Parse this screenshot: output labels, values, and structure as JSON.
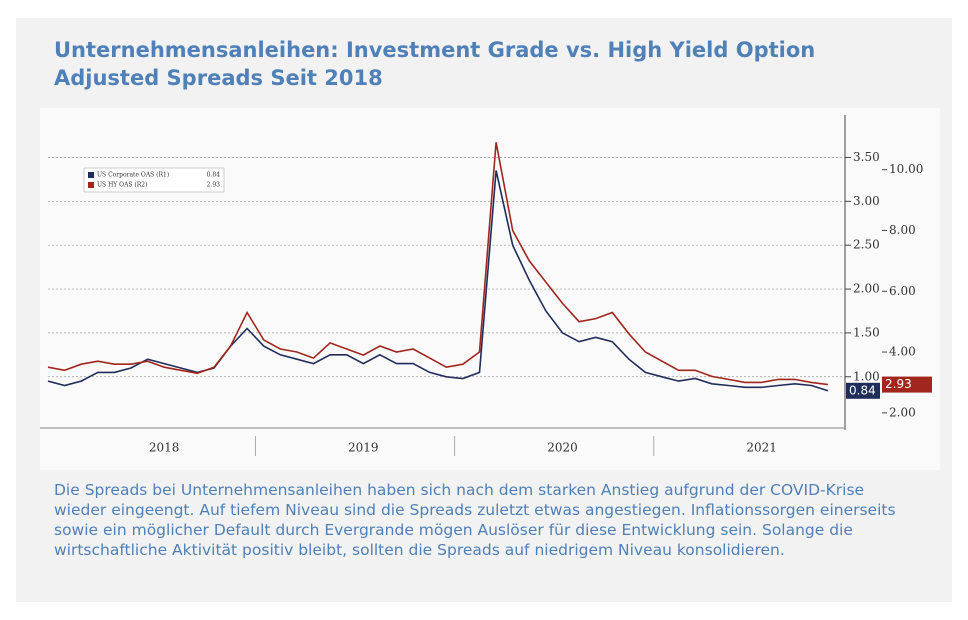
{
  "header": {
    "title": "Unternehmensanleihen: Investment Grade vs. High Yield Option Adjusted Spreads Seit 2018"
  },
  "chart_data": {
    "type": "line",
    "categories": [
      null,
      null,
      null,
      null,
      null,
      null,
      null,
      "2018",
      null,
      null,
      null,
      null,
      null,
      null,
      null,
      null,
      null,
      null,
      null,
      "2019",
      null,
      null,
      null,
      null,
      null,
      null,
      null,
      null,
      null,
      null,
      null,
      "2020",
      null,
      null,
      null,
      null,
      null,
      null,
      null,
      null,
      null,
      null,
      null,
      "2021",
      null,
      null,
      null,
      null
    ],
    "series": [
      {
        "name": "US Corporate OAS (R1)",
        "color": "#1f2d5a",
        "axis": "y",
        "values": [
          0.95,
          0.9,
          0.95,
          1.05,
          1.05,
          1.1,
          1.2,
          1.15,
          1.1,
          1.05,
          1.1,
          1.35,
          1.55,
          1.35,
          1.25,
          1.2,
          1.15,
          1.25,
          1.25,
          1.15,
          1.25,
          1.15,
          1.15,
          1.05,
          1.0,
          0.98,
          1.05,
          3.35,
          2.5,
          2.1,
          1.75,
          1.5,
          1.4,
          1.45,
          1.4,
          1.2,
          1.05,
          1.0,
          0.95,
          0.98,
          0.92,
          0.9,
          0.88,
          0.88,
          0.9,
          0.92,
          0.9,
          0.84
        ]
      },
      {
        "name": "US HY OAS (R2)",
        "color": "#a1261e",
        "axis": "y2",
        "values": [
          3.5,
          3.4,
          3.6,
          3.7,
          3.6,
          3.6,
          3.7,
          3.5,
          3.4,
          3.3,
          3.5,
          4.2,
          5.3,
          4.4,
          4.1,
          4.0,
          3.8,
          4.3,
          4.1,
          3.9,
          4.2,
          4.0,
          4.1,
          3.8,
          3.5,
          3.6,
          4.0,
          10.9,
          8.0,
          7.0,
          6.3,
          5.6,
          5.0,
          5.1,
          5.3,
          4.6,
          4.0,
          3.7,
          3.4,
          3.4,
          3.2,
          3.1,
          3.0,
          3.0,
          3.1,
          3.1,
          3.0,
          2.93
        ]
      }
    ],
    "ylim": [
      0.45,
      3.95
    ],
    "yticks": [
      {
        "value": 1,
        "label": "1.00"
      },
      {
        "value": 1.5,
        "label": "1.50"
      },
      {
        "value": 2,
        "label": "2.00"
      },
      {
        "value": 2.5,
        "label": "2.50"
      },
      {
        "value": 3,
        "label": "3.00"
      },
      {
        "value": 3.5,
        "label": "3.50"
      }
    ],
    "y2lim": [
      1.6,
      11.7
    ],
    "y2ticks": [
      {
        "value": 2,
        "label": "2.00"
      },
      {
        "value": 4,
        "label": "4.00"
      },
      {
        "value": 6,
        "label": "6.00"
      },
      {
        "value": 8,
        "label": "8.00"
      },
      {
        "value": 10,
        "label": "10.00"
      }
    ],
    "grid": true
  },
  "caption": "Die Spreads bei Unternehmensanleihen haben sich nach dem starken Anstieg aufgrund der COVID-Krise wieder eingeengt. Auf tiefem Niveau sind die Spreads zuletzt etwas angestiegen. Inflationssorgen einerseits sowie ein möglicher Default durch Evergrande mögen Auslöser für diese Entwicklung sein. Solange die wirtschaftliche Aktivität positiv bleibt, sollten die Spreads auf niedrigem Niveau konsolidieren."
}
